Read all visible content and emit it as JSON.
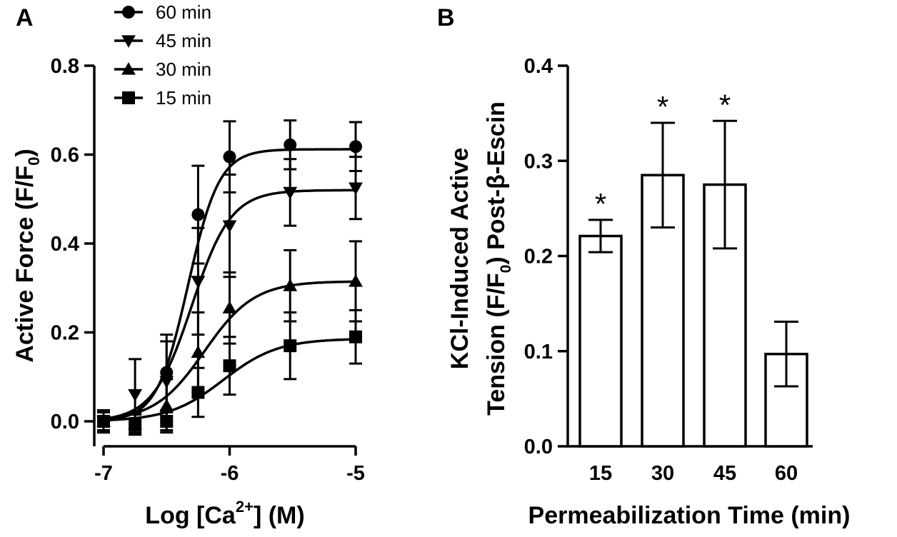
{
  "chart_data": [
    {
      "panel": "A",
      "type": "line",
      "xlabel_main": "Log [Ca",
      "xlabel_sup": "2+",
      "xlabel_end": "] (M)",
      "ylabel_main": "Active Force (F/F",
      "ylabel_sub": "0",
      "ylabel_end": ")",
      "xlim": [
        -7,
        -5
      ],
      "ylim": [
        0,
        0.8
      ],
      "xticks": [
        -7,
        -6,
        -5
      ],
      "xtick_labels": [
        "-7",
        "-6",
        "-5"
      ],
      "yticks": [
        0,
        0.2,
        0.4,
        0.6,
        0.8
      ],
      "ytick_labels": [
        "0.0",
        "0.2",
        "0.4",
        "0.6",
        "0.8"
      ],
      "legend_position": "top-left",
      "x": [
        -7,
        -6.75,
        -6.5,
        -6.25,
        -6,
        -5.52,
        -5
      ],
      "series": [
        {
          "name": "60 min",
          "marker": "circle",
          "values": [
            0.0,
            -0.005,
            0.11,
            0.465,
            0.595,
            0.622,
            0.618
          ],
          "errors": [
            0.025,
            0.025,
            0.085,
            0.11,
            0.08,
            0.055,
            0.055
          ],
          "fit": {
            "bottom": 0.0,
            "top": 0.612,
            "logEC50": -6.33,
            "hill": 3.5
          }
        },
        {
          "name": "45 min",
          "marker": "triangle-down",
          "values": [
            0.0,
            0.06,
            0.09,
            0.315,
            0.44,
            0.515,
            0.525
          ],
          "errors": [
            0.025,
            0.08,
            0.09,
            0.12,
            0.115,
            0.075,
            0.07
          ],
          "fit": {
            "bottom": 0.0,
            "top": 0.52,
            "logEC50": -6.3,
            "hill": 2.8
          }
        },
        {
          "name": "30 min",
          "marker": "triangle-up",
          "values": [
            0.0,
            -0.005,
            0.035,
            0.155,
            0.255,
            0.305,
            0.315
          ],
          "errors": [
            0.02,
            0.025,
            0.06,
            0.09,
            0.08,
            0.08,
            0.09
          ],
          "fit": {
            "bottom": 0.0,
            "top": 0.315,
            "logEC50": -6.2,
            "hill": 2.2
          }
        },
        {
          "name": "15 min",
          "marker": "square",
          "values": [
            0.0,
            -0.005,
            0.0,
            0.065,
            0.125,
            0.17,
            0.19
          ],
          "errors": [
            0.02,
            0.02,
            0.02,
            0.055,
            0.065,
            0.075,
            0.06
          ],
          "fit": {
            "bottom": 0.0,
            "top": 0.186,
            "logEC50": -6.05,
            "hill": 2.0
          }
        }
      ]
    },
    {
      "panel": "B",
      "type": "bar",
      "xlabel": "Permeabilization Time (min)",
      "ylabel_line1": "KCl-Induced Active",
      "ylabel_line2_main": "Tension (F/F",
      "ylabel_line2_sub": "0",
      "ylabel_line2_end": ") Post-β-Escin",
      "ylim": [
        0,
        0.4
      ],
      "yticks": [
        0,
        0.1,
        0.2,
        0.3,
        0.4
      ],
      "ytick_labels": [
        "0.0",
        "0.1",
        "0.2",
        "0.3",
        "0.4"
      ],
      "categories": [
        "15",
        "30",
        "45",
        "60"
      ],
      "values": [
        0.221,
        0.285,
        0.275,
        0.097
      ],
      "errors": [
        0.017,
        0.055,
        0.067,
        0.034
      ],
      "significance": [
        "*",
        "*",
        "*",
        ""
      ]
    }
  ]
}
